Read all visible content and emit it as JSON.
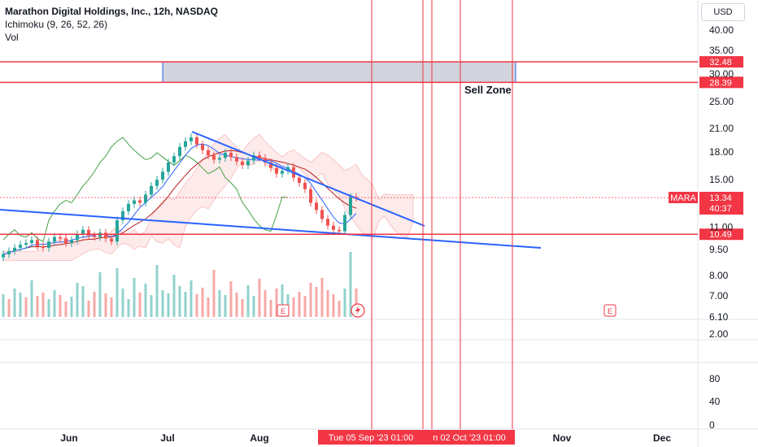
{
  "legend": {
    "title": "Marathon Digital Holdings, Inc., 12h, NASDAQ",
    "indicator1": "Ichimoku (9, 26, 52, 26)",
    "indicator2": "Vol"
  },
  "currency_button": "USD",
  "colors": {
    "up": "#26a69a",
    "down": "#ef5350",
    "tenkan": "#2962ff",
    "kijun": "#b71c1c",
    "chikou": "#43a047",
    "red_line": "#f23645",
    "trend": "#2962ff",
    "zone_fill": "#d1d4dc"
  },
  "chart_data": {
    "type": "line",
    "symbol": "MARA",
    "ylim": [
      6.1,
      42
    ],
    "price_scale": "log",
    "price_ticks": [
      "40.00",
      "35.00",
      "30.00",
      "25.00",
      "21.00",
      "18.00",
      "15.00",
      "11.00",
      "9.50",
      "8.00",
      "7.00",
      "6.10"
    ],
    "indicator_ticks": [
      "2.00"
    ],
    "volume_ticks": [
      "80",
      "40",
      "0"
    ],
    "x_ticks": [
      "Jun",
      "Jul",
      "Aug",
      "Nov",
      "Dec"
    ],
    "price_label": {
      "symbol": "MARA",
      "value": "13.34",
      "countdown": "40:37"
    },
    "horizontal_levels": [
      {
        "value": "32.48"
      },
      {
        "value": "28.39"
      },
      {
        "value": "10.49"
      }
    ],
    "date_labels": [
      "Tue 05 Sep '23   01:00",
      "n 02 Oct '23   01:00"
    ],
    "annotation": "Sell Zone",
    "earnings_markers": [
      "E",
      "E"
    ],
    "price_series": [
      9.2,
      9.4,
      9.6,
      9.8,
      9.9,
      10.1,
      9.7,
      9.6,
      10.0,
      10.3,
      10.2,
      9.9,
      10.1,
      10.5,
      10.8,
      10.4,
      10.3,
      10.6,
      10.2,
      10.0,
      11.5,
      12.2,
      12.8,
      13.1,
      12.9,
      13.6,
      14.4,
      15.0,
      15.8,
      16.8,
      17.5,
      18.6,
      19.3,
      19.8,
      18.9,
      18.2,
      17.6,
      17.1,
      17.3,
      17.9,
      17.4,
      16.9,
      16.5,
      17.0,
      17.6,
      17.3,
      16.8,
      16.2,
      15.6,
      15.9,
      16.3,
      15.2,
      14.7,
      14.1,
      12.9,
      12.3,
      11.6,
      11.1,
      10.8,
      10.7,
      11.9,
      13.4,
      13.34
    ]
  },
  "volume_series": [
    28,
    22,
    35,
    30,
    24,
    45,
    26,
    30,
    22,
    33,
    27,
    19,
    25,
    42,
    38,
    20,
    31,
    55,
    29,
    24,
    60,
    35,
    22,
    48,
    30,
    41,
    27,
    64,
    33,
    29,
    52,
    38,
    31,
    45,
    28,
    36,
    24,
    58,
    33,
    27,
    44,
    30,
    22,
    39,
    26,
    47,
    33,
    21,
    35,
    40,
    28,
    24,
    31,
    26,
    42,
    37,
    48,
    33,
    28,
    20,
    35,
    80,
    35
  ],
  "volume_up": [
    1,
    0,
    1,
    1,
    0,
    1,
    0,
    0,
    1,
    1,
    0,
    0,
    1,
    1,
    1,
    0,
    0,
    1,
    0,
    0,
    1,
    1,
    1,
    1,
    0,
    1,
    1,
    1,
    1,
    1,
    1,
    1,
    1,
    1,
    0,
    0,
    0,
    0,
    1,
    1,
    0,
    0,
    0,
    1,
    1,
    0,
    0,
    0,
    0,
    1,
    1,
    0,
    0,
    0,
    0,
    0,
    0,
    0,
    0,
    0,
    1,
    1,
    0
  ]
}
